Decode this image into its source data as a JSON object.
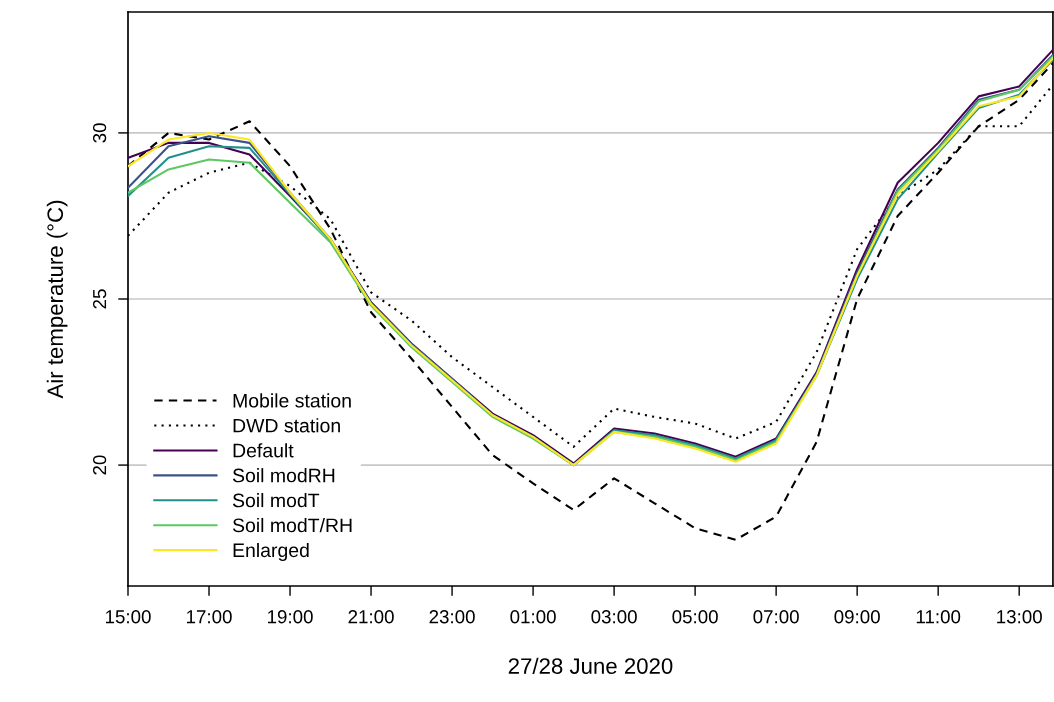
{
  "chart_data": {
    "type": "line",
    "xlabel": "27/28 June 2020",
    "ylabel": "Air temperature (°C)",
    "x": [
      "2020-06-27T15:00",
      "2020-06-27T16:00",
      "2020-06-27T17:00",
      "2020-06-27T18:00",
      "2020-06-27T19:00",
      "2020-06-27T20:00",
      "2020-06-27T21:00",
      "2020-06-27T22:00",
      "2020-06-27T23:00",
      "2020-06-28T00:00",
      "2020-06-28T01:00",
      "2020-06-28T02:00",
      "2020-06-28T03:00",
      "2020-06-28T04:00",
      "2020-06-28T05:00",
      "2020-06-28T06:00",
      "2020-06-28T07:00",
      "2020-06-28T08:00",
      "2020-06-28T09:00",
      "2020-06-28T10:00",
      "2020-06-28T11:00",
      "2020-06-28T12:00",
      "2020-06-28T13:00",
      "2020-06-28T13:50"
    ],
    "xlim": [
      "2020-06-27T15:00",
      "2020-06-28T13:50"
    ],
    "xticks": [
      {
        "value": "2020-06-27T15:00",
        "label": "15:00"
      },
      {
        "value": "2020-06-27T17:00",
        "label": "17:00"
      },
      {
        "value": "2020-06-27T19:00",
        "label": "19:00"
      },
      {
        "value": "2020-06-27T21:00",
        "label": "21:00"
      },
      {
        "value": "2020-06-27T23:00",
        "label": "23:00"
      },
      {
        "value": "2020-06-28T01:00",
        "label": "01:00"
      },
      {
        "value": "2020-06-28T03:00",
        "label": "03:00"
      },
      {
        "value": "2020-06-28T05:00",
        "label": "05:00"
      },
      {
        "value": "2020-06-28T07:00",
        "label": "07:00"
      },
      {
        "value": "2020-06-28T09:00",
        "label": "09:00"
      },
      {
        "value": "2020-06-28T11:00",
        "label": "11:00"
      },
      {
        "value": "2020-06-28T13:00",
        "label": "13:00"
      }
    ],
    "ylim": [
      16.36,
      33.64
    ],
    "yticks": [
      20,
      25,
      30
    ],
    "grid": "y",
    "legend": "bottom left",
    "marker": "none",
    "series": [
      {
        "name": "Mobile station",
        "color": "#000000",
        "line_style": "dashed",
        "values": [
          29.0,
          30.0,
          29.8,
          30.35,
          29.0,
          27.1,
          24.6,
          23.2,
          21.75,
          20.3,
          19.45,
          18.65,
          19.6,
          18.85,
          18.1,
          17.75,
          18.45,
          20.7,
          25.0,
          27.5,
          28.8,
          30.2,
          31.0,
          32.1
        ]
      },
      {
        "name": "DWD station",
        "color": "#000000",
        "line_style": "dotted",
        "values": [
          26.9,
          28.2,
          28.8,
          29.1,
          28.4,
          27.4,
          25.2,
          24.35,
          23.25,
          22.35,
          21.45,
          20.55,
          21.7,
          21.45,
          21.25,
          20.8,
          21.3,
          23.4,
          26.5,
          28.1,
          28.9,
          30.2,
          30.2,
          31.45
        ]
      },
      {
        "name": "Default",
        "color": "#440154",
        "line_style": "solid",
        "values": [
          29.25,
          29.7,
          29.7,
          29.35,
          28.1,
          26.8,
          24.9,
          23.65,
          22.6,
          21.55,
          20.9,
          20.05,
          21.1,
          20.95,
          20.65,
          20.25,
          20.8,
          22.8,
          25.9,
          28.5,
          29.7,
          31.1,
          31.4,
          32.5
        ]
      },
      {
        "name": "Soil modRH",
        "color": "#3b528b",
        "line_style": "solid",
        "values": [
          28.35,
          29.6,
          29.9,
          29.7,
          28.2,
          26.8,
          24.9,
          23.65,
          22.6,
          21.5,
          20.85,
          20.0,
          21.05,
          20.9,
          20.6,
          20.2,
          20.75,
          22.75,
          25.8,
          28.3,
          29.55,
          31.0,
          31.3,
          32.35
        ]
      },
      {
        "name": "Soil modT",
        "color": "#21908c",
        "line_style": "solid",
        "values": [
          28.1,
          29.25,
          29.6,
          29.55,
          28.15,
          26.75,
          24.85,
          23.6,
          22.55,
          21.5,
          20.85,
          20.0,
          21.05,
          20.9,
          20.6,
          20.2,
          20.75,
          22.7,
          25.6,
          28.0,
          29.4,
          30.75,
          31.15,
          32.2
        ]
      },
      {
        "name": "Soil modT/RH",
        "color": "#5dc863",
        "line_style": "solid",
        "values": [
          28.2,
          28.9,
          29.2,
          29.1,
          27.9,
          26.7,
          24.8,
          23.55,
          22.5,
          21.45,
          20.8,
          20.0,
          21.0,
          20.85,
          20.55,
          20.15,
          20.7,
          22.7,
          25.7,
          28.25,
          29.5,
          30.95,
          31.3,
          32.3
        ]
      },
      {
        "name": "Enlarged",
        "color": "#fde725",
        "line_style": "solid",
        "values": [
          29.0,
          29.8,
          30.0,
          29.8,
          28.2,
          26.8,
          24.85,
          23.6,
          22.55,
          21.5,
          20.85,
          20.0,
          21.0,
          20.8,
          20.5,
          20.1,
          20.65,
          22.7,
          25.7,
          28.15,
          29.45,
          30.8,
          31.1,
          32.25
        ]
      }
    ]
  }
}
